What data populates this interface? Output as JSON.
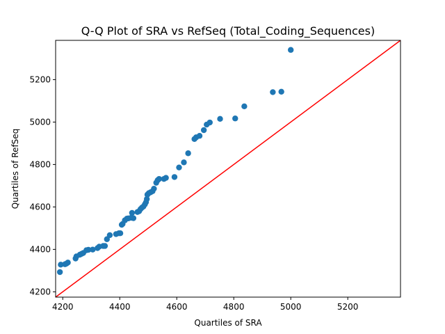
{
  "chart_data": {
    "type": "scatter",
    "title": "Q-Q Plot of SRA vs RefSeq (Total_Coding_Sequences)",
    "xlabel": "Quartiles of SRA",
    "ylabel": "Quartiles of RefSeq",
    "xlim": [
      4175,
      5385
    ],
    "ylim": [
      4175,
      5385
    ],
    "xticks": [
      4200,
      4400,
      4600,
      4800,
      5000,
      5200
    ],
    "yticks": [
      4200,
      4400,
      4600,
      4800,
      5000,
      5200
    ],
    "grid": false,
    "legend": "none",
    "reference_line": {
      "from": [
        4175,
        4175
      ],
      "to": [
        5385,
        5385
      ],
      "color": "#ff0000"
    },
    "series": [
      {
        "color": "#1f77b4",
        "points": [
          [
            4190,
            4293
          ],
          [
            4193,
            4328
          ],
          [
            4208,
            4330
          ],
          [
            4213,
            4333
          ],
          [
            4218,
            4338
          ],
          [
            4245,
            4357
          ],
          [
            4248,
            4367
          ],
          [
            4260,
            4375
          ],
          [
            4266,
            4379
          ],
          [
            4272,
            4383
          ],
          [
            4283,
            4396
          ],
          [
            4290,
            4398
          ],
          [
            4305,
            4399
          ],
          [
            4322,
            4406
          ],
          [
            4328,
            4413
          ],
          [
            4342,
            4416
          ],
          [
            4348,
            4416
          ],
          [
            4355,
            4448
          ],
          [
            4365,
            4467
          ],
          [
            4387,
            4472
          ],
          [
            4397,
            4476
          ],
          [
            4402,
            4476
          ],
          [
            4407,
            4516
          ],
          [
            4410,
            4520
          ],
          [
            4418,
            4537
          ],
          [
            4425,
            4545
          ],
          [
            4430,
            4546
          ],
          [
            4440,
            4549
          ],
          [
            4443,
            4572
          ],
          [
            4448,
            4547
          ],
          [
            4462,
            4576
          ],
          [
            4468,
            4580
          ],
          [
            4473,
            4590
          ],
          [
            4478,
            4597
          ],
          [
            4483,
            4602
          ],
          [
            4488,
            4612
          ],
          [
            4492,
            4622
          ],
          [
            4495,
            4637
          ],
          [
            4497,
            4658
          ],
          [
            4502,
            4665
          ],
          [
            4508,
            4669
          ],
          [
            4515,
            4674
          ],
          [
            4520,
            4686
          ],
          [
            4528,
            4714
          ],
          [
            4533,
            4726
          ],
          [
            4538,
            4732
          ],
          [
            4555,
            4732
          ],
          [
            4562,
            4737
          ],
          [
            4592,
            4741
          ],
          [
            4608,
            4786
          ],
          [
            4625,
            4810
          ],
          [
            4640,
            4853
          ],
          [
            4662,
            4920
          ],
          [
            4668,
            4928
          ],
          [
            4680,
            4935
          ],
          [
            4695,
            4962
          ],
          [
            4705,
            4988
          ],
          [
            4716,
            4998
          ],
          [
            4752,
            5015
          ],
          [
            4805,
            5017
          ],
          [
            4837,
            5074
          ],
          [
            4937,
            5141
          ],
          [
            4967,
            5143
          ],
          [
            5000,
            5340
          ]
        ]
      }
    ]
  }
}
